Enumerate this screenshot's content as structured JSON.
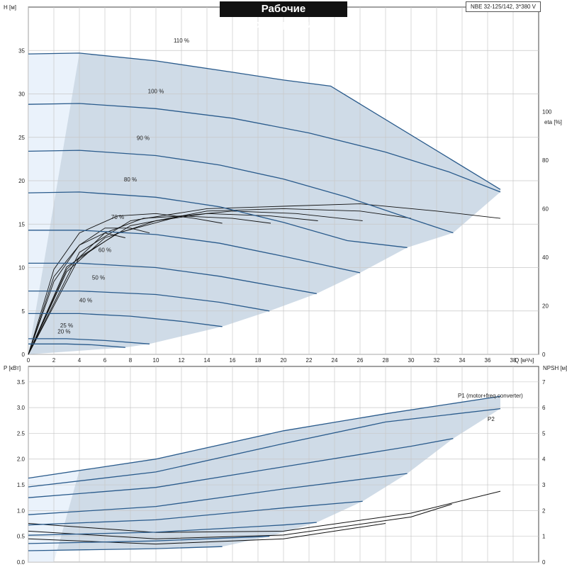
{
  "title": "Рабочие характеристики",
  "model": "NBE 32-125/142, 3*380 V",
  "colors": {
    "envelope_fill": "#cfdbe7",
    "light_fill": "#eaf2fb",
    "speed_curve": "#2a5b8c",
    "efficiency_curve": "#111111",
    "grid": "#c8c8c8"
  },
  "chart_data": [
    {
      "type": "line",
      "title": "",
      "xlabel": "Q [м³/ч]",
      "ylabel": "H [м]",
      "y2label": "eta [%]",
      "xlim": [
        0,
        40
      ],
      "ylim": [
        0,
        40
      ],
      "y2lim": [
        0,
        143
      ],
      "x_ticks": [
        0,
        2,
        4,
        6,
        8,
        10,
        12,
        14,
        16,
        18,
        20,
        22,
        24,
        26,
        28,
        30,
        32,
        34,
        36,
        38
      ],
      "y_ticks": [
        0,
        5,
        10,
        15,
        20,
        25,
        30,
        35
      ],
      "y2_ticks": [
        0,
        20,
        40,
        60,
        80,
        100
      ],
      "grid": true,
      "series": [
        {
          "name": "110 %",
          "x": [
            0,
            4,
            10,
            16,
            20,
            23.7,
            37
          ],
          "y": [
            34.6,
            34.7,
            33.8,
            32.5,
            31.6,
            30.9,
            19.0
          ]
        },
        {
          "name": "100 %",
          "x": [
            0,
            4,
            10,
            16,
            22,
            28,
            33,
            37
          ],
          "y": [
            28.8,
            28.9,
            28.3,
            27.2,
            25.5,
            23.3,
            21.0,
            18.7
          ]
        },
        {
          "name": "90 %",
          "x": [
            0,
            4,
            10,
            15,
            20,
            25,
            30,
            33.3
          ],
          "y": [
            23.4,
            23.5,
            22.9,
            21.8,
            20.2,
            18.1,
            15.6,
            14.0
          ]
        },
        {
          "name": "80 %",
          "x": [
            0,
            4,
            10,
            15,
            20,
            25,
            29.7
          ],
          "y": [
            18.6,
            18.7,
            18.1,
            17.0,
            15.2,
            13.1,
            12.3
          ]
        },
        {
          "name": "70 %",
          "x": [
            0,
            4,
            10,
            15,
            20,
            26
          ],
          "y": [
            14.3,
            14.3,
            13.8,
            12.8,
            11.3,
            9.4
          ]
        },
        {
          "name": "60 %",
          "x": [
            0,
            4,
            10,
            15,
            22.6
          ],
          "y": [
            10.5,
            10.5,
            10.0,
            9.0,
            7.0
          ]
        },
        {
          "name": "50 %",
          "x": [
            0,
            4,
            10,
            15,
            18.9
          ],
          "y": [
            7.3,
            7.3,
            6.9,
            6.0,
            5.0
          ]
        },
        {
          "name": "40 %",
          "x": [
            0,
            4,
            8,
            12,
            15.2
          ],
          "y": [
            4.7,
            4.7,
            4.4,
            3.8,
            3.2
          ]
        },
        {
          "name": "25 %",
          "x": [
            0,
            3,
            6,
            9.5
          ],
          "y": [
            1.8,
            1.8,
            1.6,
            1.2
          ]
        },
        {
          "name": "20 %",
          "x": [
            0,
            3,
            5,
            7.6
          ],
          "y": [
            1.2,
            1.2,
            1.1,
            0.8
          ]
        }
      ],
      "efficiency_series": [
        {
          "x": [
            0,
            4,
            8,
            14,
            20,
            26,
            32,
            37
          ],
          "y": [
            0,
            42,
            55,
            60,
            61,
            62,
            59,
            56
          ]
        },
        {
          "x": [
            0,
            4,
            8,
            14,
            20,
            26,
            30
          ],
          "y": [
            0,
            40,
            53,
            59,
            60,
            59,
            56
          ]
        },
        {
          "x": [
            0,
            3,
            7,
            12,
            16,
            21,
            26.2
          ],
          "y": [
            0,
            36,
            50,
            57,
            59,
            58,
            55
          ]
        },
        {
          "x": [
            0,
            3,
            6,
            10,
            14,
            19,
            22.7
          ],
          "y": [
            0,
            34,
            48,
            55,
            58,
            57,
            55
          ]
        },
        {
          "x": [
            0,
            3,
            6,
            9,
            12,
            16,
            19
          ],
          "y": [
            0,
            35,
            50,
            56,
            57,
            56,
            54
          ]
        },
        {
          "x": [
            0,
            2,
            4,
            7,
            10,
            13,
            15.2
          ],
          "y": [
            0,
            35,
            50,
            57,
            58,
            56,
            54
          ]
        },
        {
          "x": [
            0,
            2,
            4,
            6,
            8,
            9.5
          ],
          "y": [
            0,
            32,
            45,
            52,
            52,
            50
          ]
        },
        {
          "x": [
            0,
            2,
            4,
            6,
            7.6
          ],
          "y": [
            0,
            30,
            45,
            50,
            48
          ]
        }
      ]
    },
    {
      "type": "line",
      "title": "",
      "xlabel": "",
      "ylabel": "P [кВт]",
      "y2label": "NPSH [м]",
      "xlim": [
        0,
        40
      ],
      "ylim": [
        0,
        3.8
      ],
      "y2lim": [
        0,
        7.6
      ],
      "y_ticks": [
        0.0,
        0.5,
        1.0,
        1.5,
        2.0,
        2.5,
        3.0,
        3.5
      ],
      "y_tick_labels": [
        "0.0",
        "0.5",
        "1.0",
        "1.5",
        "2.0",
        "2.5",
        "3.0",
        "3.5"
      ],
      "y2_ticks": [
        0,
        1,
        2,
        3,
        4,
        5,
        6,
        7
      ],
      "grid": true,
      "series": [
        {
          "name": "P1 (motor+freq.converter)",
          "x": [
            0,
            10,
            20,
            28,
            37
          ],
          "y": [
            1.63,
            2.0,
            2.55,
            2.88,
            3.22
          ]
        },
        {
          "name": "P2",
          "x": [
            0,
            10,
            20,
            28,
            37
          ],
          "y": [
            1.46,
            1.75,
            2.3,
            2.72,
            2.98
          ]
        },
        {
          "name": "",
          "x": [
            0,
            10,
            20,
            30,
            33.3
          ],
          "y": [
            1.25,
            1.45,
            1.85,
            2.25,
            2.4
          ]
        },
        {
          "name": "",
          "x": [
            0,
            10,
            20,
            29.7
          ],
          "y": [
            0.92,
            1.08,
            1.42,
            1.72
          ]
        },
        {
          "name": "",
          "x": [
            0,
            10,
            20,
            26.2
          ],
          "y": [
            0.72,
            0.82,
            1.05,
            1.18
          ]
        },
        {
          "name": "",
          "x": [
            0,
            10,
            20,
            22.6
          ],
          "y": [
            0.52,
            0.58,
            0.72,
            0.77
          ]
        },
        {
          "name": "",
          "x": [
            0,
            10,
            18.9
          ],
          "y": [
            0.36,
            0.41,
            0.5
          ]
        },
        {
          "name": "",
          "x": [
            0,
            10,
            15.2
          ],
          "y": [
            0.22,
            0.26,
            0.3
          ]
        }
      ],
      "npsh_series": [
        {
          "x": [
            0,
            10,
            20,
            30,
            37
          ],
          "y": [
            1.5,
            1.15,
            1.2,
            1.9,
            2.75
          ]
        },
        {
          "x": [
            0,
            10,
            20,
            30,
            33.2
          ],
          "y": [
            1.2,
            0.9,
            1.05,
            1.75,
            2.25
          ]
        },
        {
          "x": [
            0,
            10,
            20,
            28
          ],
          "y": [
            0.9,
            0.7,
            0.9,
            1.5
          ]
        }
      ]
    }
  ]
}
